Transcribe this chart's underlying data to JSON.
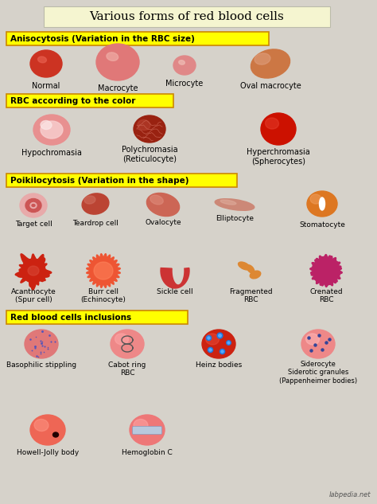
{
  "title": "Various forms of red blood cells",
  "bg_color": "#d6d2ca",
  "title_box_color": "#f5f5d0",
  "section_box_color": "#ffff00",
  "section_border_color": "#cc8800",
  "sections": [
    "Anisocytosis (Variation in the RBC size)",
    "RBC according to the color",
    "Poikilocytosis (Variation in the shape)",
    "Red blood cells inclusions"
  ],
  "footer": "labpedia.net"
}
